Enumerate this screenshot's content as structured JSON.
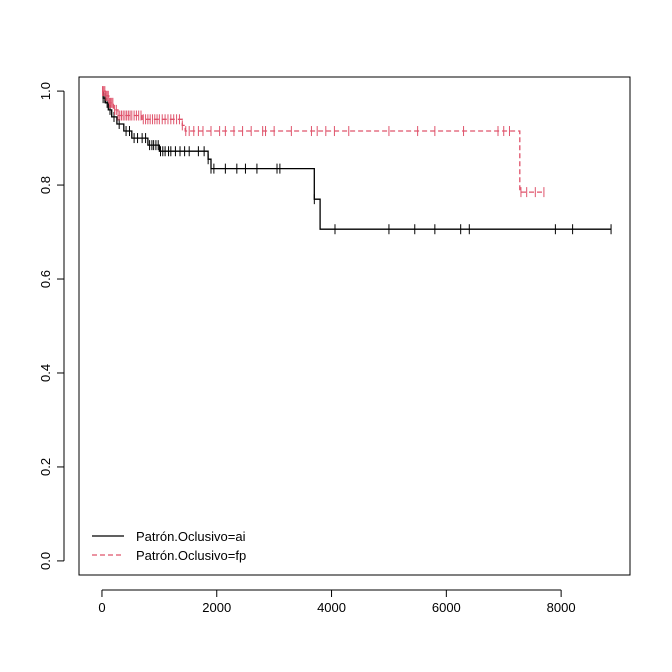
{
  "chart_data": {
    "type": "line",
    "title": "",
    "xlabel": "",
    "ylabel": "",
    "xlim": [
      -400,
      9200
    ],
    "ylim": [
      -0.03,
      1.03
    ],
    "x_ticks": [
      0,
      2000,
      4000,
      6000,
      8000
    ],
    "x_tick_labels": [
      "0",
      "2000",
      "4000",
      "6000",
      "8000"
    ],
    "y_ticks": [
      0.0,
      0.2,
      0.4,
      0.6,
      0.8,
      1.0
    ],
    "y_tick_labels": [
      "0.0",
      "0.2",
      "0.4",
      "0.6",
      "0.8",
      "1.0"
    ],
    "grid": false,
    "legend_position": "bottom-left",
    "series": [
      {
        "name": "Patrón.Oclusivo=ai",
        "color": "#000000",
        "dash": "solid",
        "steps": [
          [
            0,
            1.0
          ],
          [
            20,
            0.985
          ],
          [
            60,
            0.975
          ],
          [
            110,
            0.96
          ],
          [
            170,
            0.945
          ],
          [
            260,
            0.93
          ],
          [
            380,
            0.915
          ],
          [
            520,
            0.9
          ],
          [
            800,
            0.885
          ],
          [
            1000,
            0.872
          ],
          [
            1850,
            0.855
          ],
          [
            1900,
            0.835
          ],
          [
            3700,
            0.77
          ],
          [
            3800,
            0.706
          ],
          [
            8870,
            0.706
          ]
        ],
        "censored": [
          20,
          50,
          90,
          140,
          210,
          300,
          420,
          480,
          560,
          620,
          700,
          760,
          830,
          870,
          900,
          940,
          980,
          1020,
          1060,
          1100,
          1160,
          1200,
          1280,
          1360,
          1440,
          1520,
          1680,
          1780,
          1850,
          1900,
          1950,
          2150,
          2350,
          2500,
          2700,
          3050,
          3100,
          3700,
          4060,
          5000,
          5450,
          5800,
          6250,
          6400,
          7900,
          8200,
          8870
        ]
      },
      {
        "name": "Patrón.Oclusivo=fp",
        "color": "#DF536B",
        "dash": "dashed",
        "steps": [
          [
            0,
            1.0
          ],
          [
            60,
            0.99
          ],
          [
            120,
            0.975
          ],
          [
            200,
            0.96
          ],
          [
            280,
            0.948
          ],
          [
            700,
            0.94
          ],
          [
            1400,
            0.927
          ],
          [
            1450,
            0.915
          ],
          [
            7280,
            0.785
          ],
          [
            7700,
            0.785
          ]
        ],
        "censored": [
          10,
          30,
          50,
          70,
          90,
          110,
          130,
          150,
          170,
          190,
          220,
          250,
          280,
          310,
          340,
          370,
          400,
          430,
          460,
          490,
          520,
          560,
          600,
          640,
          680,
          720,
          760,
          800,
          840,
          880,
          920,
          960,
          1000,
          1050,
          1100,
          1150,
          1200,
          1250,
          1300,
          1350,
          1400,
          1460,
          1520,
          1600,
          1680,
          1760,
          1900,
          2050,
          2150,
          2300,
          2450,
          2600,
          2800,
          2850,
          3000,
          3300,
          3650,
          3750,
          3900,
          4050,
          4300,
          5000,
          5500,
          5800,
          6300,
          6900,
          7000,
          7100,
          7300,
          7400,
          7550,
          7700
        ]
      }
    ]
  }
}
